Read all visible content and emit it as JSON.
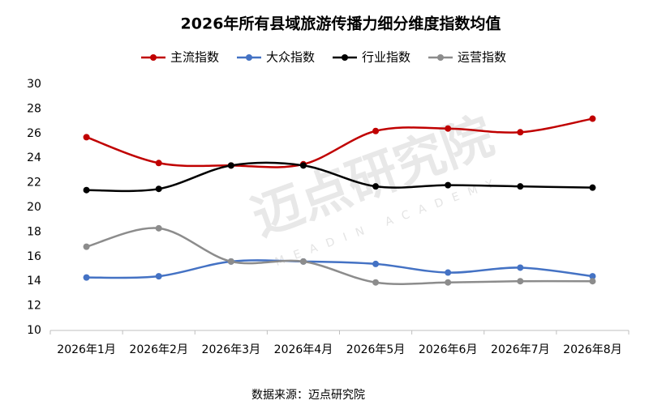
{
  "chart_data": {
    "type": "line",
    "title": "2026年所有县域旅游传播力细分维度指数均值",
    "categories": [
      "2026年1月",
      "2026年2月",
      "2026年3月",
      "2026年4月",
      "2026年5月",
      "2026年6月",
      "2026年7月",
      "2026年8月"
    ],
    "series": [
      {
        "name": "主流指数",
        "color": "#c00000",
        "values": [
          25.7,
          23.6,
          23.4,
          23.5,
          26.2,
          26.4,
          26.1,
          27.2
        ]
      },
      {
        "name": "大众指数",
        "color": "#4472c4",
        "values": [
          14.3,
          14.4,
          15.6,
          15.6,
          15.4,
          14.7,
          15.1,
          14.4
        ]
      },
      {
        "name": "行业指数",
        "color": "#000000",
        "values": [
          21.4,
          21.5,
          23.4,
          23.4,
          21.7,
          21.8,
          21.7,
          21.6
        ]
      },
      {
        "name": "运营指数",
        "color": "#8c8c8c",
        "values": [
          16.8,
          18.3,
          15.6,
          15.6,
          13.9,
          13.9,
          14.0,
          14.0
        ]
      }
    ],
    "ylim": [
      10,
      30
    ],
    "yticks": [
      10,
      12,
      14,
      16,
      18,
      20,
      22,
      24,
      26,
      28,
      30
    ],
    "grid": false,
    "smooth": true,
    "legend": "top",
    "watermark": {
      "main": "迈点研究院",
      "sub": "MEADIN ACADEMY"
    },
    "source": "数据来源：迈点研究院"
  }
}
